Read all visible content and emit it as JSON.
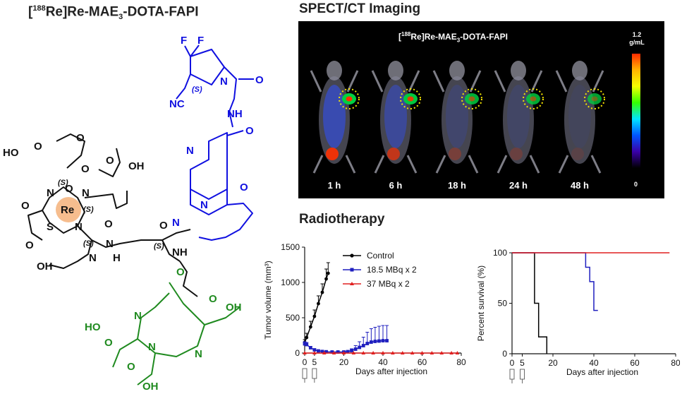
{
  "headings": {
    "structure": {
      "pre": "[",
      "sup": "188",
      "post": "Re]Re-MAE",
      "sub": "3",
      "tail": "-DOTA-FAPI"
    },
    "spect": "SPECT/CT Imaging",
    "radiotherapy": "Radiotherapy"
  },
  "molecule": {
    "atoms": [
      "F",
      "F",
      "N",
      "(S)",
      "NC",
      "O",
      "NH",
      "O",
      "N",
      "O",
      "N",
      "N",
      "O",
      "HO",
      "O",
      "(S)",
      "O",
      "OH",
      "O",
      "N",
      "O",
      "N",
      "Re",
      "(S)",
      "S",
      "N",
      "O",
      "(S)",
      "N",
      "O",
      "O",
      "OH",
      "N",
      "H",
      "O",
      "(S)",
      "NH",
      "O",
      "N",
      "OH",
      "O",
      "N",
      "HO",
      "O",
      "N",
      "O",
      "OH"
    ]
  },
  "spect": {
    "header": {
      "pre": "[",
      "sup": "188",
      "post": "Re]Re-MAE",
      "sub": "3",
      "tail": "-DOTA-FAPI"
    },
    "colorbar_max": "1.2 g/mL",
    "colorbar_min": "0",
    "timepoints": [
      "1 h",
      "6 h",
      "18 h",
      "24 h",
      "48 h"
    ],
    "tumor_intensity": [
      1.0,
      0.9,
      0.6,
      0.55,
      0.4
    ],
    "body_uptake": [
      1.0,
      0.75,
      0.3,
      0.22,
      0.12
    ]
  },
  "chart_data": [
    {
      "type": "line",
      "xlabel": "Days after injection",
      "ylabel": "Tumor volume  (mm³)",
      "xlim": [
        0,
        80
      ],
      "ylim": [
        0,
        1500
      ],
      "xticks": [
        "0",
        "20",
        "40",
        "60",
        "80"
      ],
      "yticks": [
        "0",
        "500",
        "1000",
        "1500"
      ],
      "extra_xticks": [
        "5"
      ],
      "injection_days": [
        0,
        5
      ],
      "legend_position": "top-right",
      "series": [
        {
          "name": "Control",
          "color": "#000000",
          "marker": "circle",
          "x": [
            0,
            1,
            3,
            5,
            7,
            9,
            11,
            12
          ],
          "y": [
            150,
            220,
            370,
            520,
            700,
            860,
            1050,
            1130
          ],
          "err": [
            40,
            60,
            80,
            90,
            110,
            120,
            140,
            150
          ]
        },
        {
          "name": "18.5 MBq x 2",
          "color": "#1f1fbf",
          "marker": "square",
          "x": [
            0,
            1,
            3,
            5,
            7,
            9,
            11,
            14,
            17,
            20,
            22,
            24,
            26,
            28,
            30,
            32,
            34,
            36,
            38,
            40,
            42
          ],
          "y": [
            130,
            120,
            75,
            45,
            30,
            22,
            18,
            15,
            15,
            15,
            20,
            35,
            55,
            80,
            105,
            135,
            155,
            165,
            170,
            175,
            175
          ],
          "err": [
            30,
            30,
            20,
            15,
            10,
            8,
            6,
            5,
            5,
            5,
            10,
            25,
            50,
            80,
            120,
            160,
            190,
            200,
            210,
            215,
            215
          ]
        },
        {
          "name": "37 MBq x 2",
          "color": "#e02020",
          "marker": "triangle",
          "x": [
            0,
            5,
            10,
            15,
            20,
            25,
            30,
            35,
            40,
            45,
            50,
            55,
            60,
            65,
            70,
            75,
            78
          ],
          "y": [
            0,
            0,
            0,
            0,
            0,
            0,
            0,
            0,
            0,
            0,
            0,
            0,
            0,
            0,
            0,
            0,
            0
          ]
        }
      ]
    },
    {
      "type": "line",
      "xlabel": "Days after injection",
      "ylabel": "Percent survival (%)",
      "xlim": [
        0,
        80
      ],
      "ylim": [
        0,
        100
      ],
      "xticks": [
        "0",
        "20",
        "40",
        "60",
        "80"
      ],
      "yticks": [
        "0",
        "50",
        "100"
      ],
      "extra_xticks": [
        "5"
      ],
      "injection_days": [
        0,
        5
      ],
      "step": true,
      "series": [
        {
          "name": "Control",
          "color": "#000000",
          "x": [
            0,
            11,
            13,
            17
          ],
          "y": [
            100,
            50,
            16.7,
            0
          ]
        },
        {
          "name": "18.5 MBq x 2",
          "color": "#1f1fbf",
          "x": [
            0,
            36,
            38,
            40,
            42
          ],
          "y": [
            100,
            85.7,
            71.4,
            42.9,
            42.9
          ]
        },
        {
          "name": "37 MBq x 2",
          "color": "#e02020",
          "x": [
            0,
            77
          ],
          "y": [
            100,
            100
          ]
        }
      ]
    }
  ]
}
